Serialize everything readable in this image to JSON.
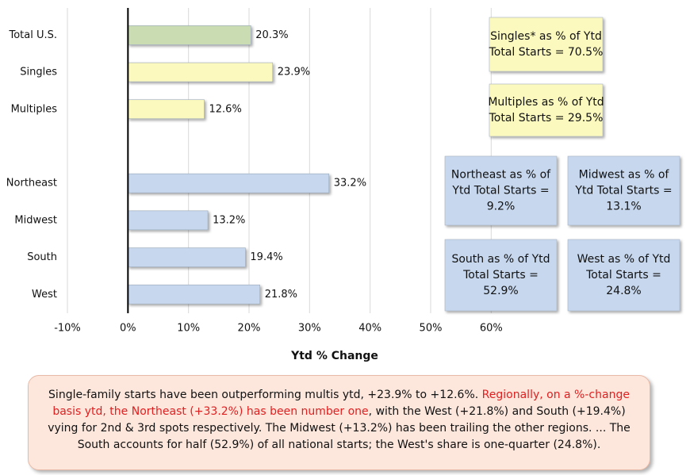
{
  "chart_data": {
    "type": "barh",
    "categories": [
      "Total U.S.",
      "Singles",
      "Multiples",
      null,
      "Northeast",
      "Midwest",
      "South",
      "West"
    ],
    "values": [
      20.3,
      23.9,
      12.6,
      null,
      33.2,
      13.2,
      19.4,
      21.8
    ],
    "value_labels": [
      "20.3%",
      "23.9%",
      "12.6%",
      null,
      "33.2%",
      "13.2%",
      "19.4%",
      "21.8%"
    ],
    "colors": [
      "#c9dcb2",
      "#fbf9bd",
      "#fbf9bd",
      null,
      "#c6d7ee",
      "#c6d7ee",
      "#c6d7ee",
      "#c6d7ee"
    ],
    "xlim": [
      -10,
      80
    ],
    "xticks": [
      {
        "value": -10,
        "label": "-10%"
      },
      {
        "value": 0,
        "label": "0%"
      },
      {
        "value": 10,
        "label": "10%"
      },
      {
        "value": 20,
        "label": "20%"
      },
      {
        "value": 30,
        "label": "30%"
      },
      {
        "value": 40,
        "label": "40%"
      },
      {
        "value": 50,
        "label": "50%"
      },
      {
        "value": 60,
        "label": "60%"
      }
    ],
    "grid": true,
    "xlabel": "Ytd % Change",
    "annotations": [
      {
        "lines": [
          "Singles* as % of Ytd",
          "Total Starts = 70.5%"
        ],
        "color": "#fbf9bd"
      },
      {
        "lines": [
          "Multiples as % of Ytd",
          "Total Starts = 29.5%"
        ],
        "color": "#fbf9bd"
      },
      {
        "lines": [
          "Northeast as % of",
          "Ytd Total Starts =",
          "9.2%"
        ],
        "color": "#c6d7ee"
      },
      {
        "lines": [
          "Midwest as % of",
          "Ytd Total Starts =",
          "13.1%"
        ],
        "color": "#c6d7ee"
      },
      {
        "lines": [
          "South as % of Ytd",
          "Total Starts =",
          "52.9%"
        ],
        "color": "#c6d7ee"
      },
      {
        "lines": [
          "West as % of Ytd",
          "Total Starts =",
          "24.8%"
        ],
        "color": "#c6d7ee"
      }
    ],
    "caption": [
      {
        "text": "Single-family starts have been outperforming multis ytd, +23.9% to +12.6%. ",
        "color": "#111111"
      },
      {
        "text": "Regionally, on a %-change basis ytd, the Northeast (+33.2%) has been number one",
        "color": "#e02020"
      },
      {
        "text": ", with the West (+21.8%) and South (+19.4%) vying for 2nd & 3rd spots respectively. The Midwest (+13.2%) has been trailing the other regions. ... The South accounts for half (52.9%) of all national starts; the West's share is one-quarter (24.8%).",
        "color": "#111111"
      }
    ]
  }
}
